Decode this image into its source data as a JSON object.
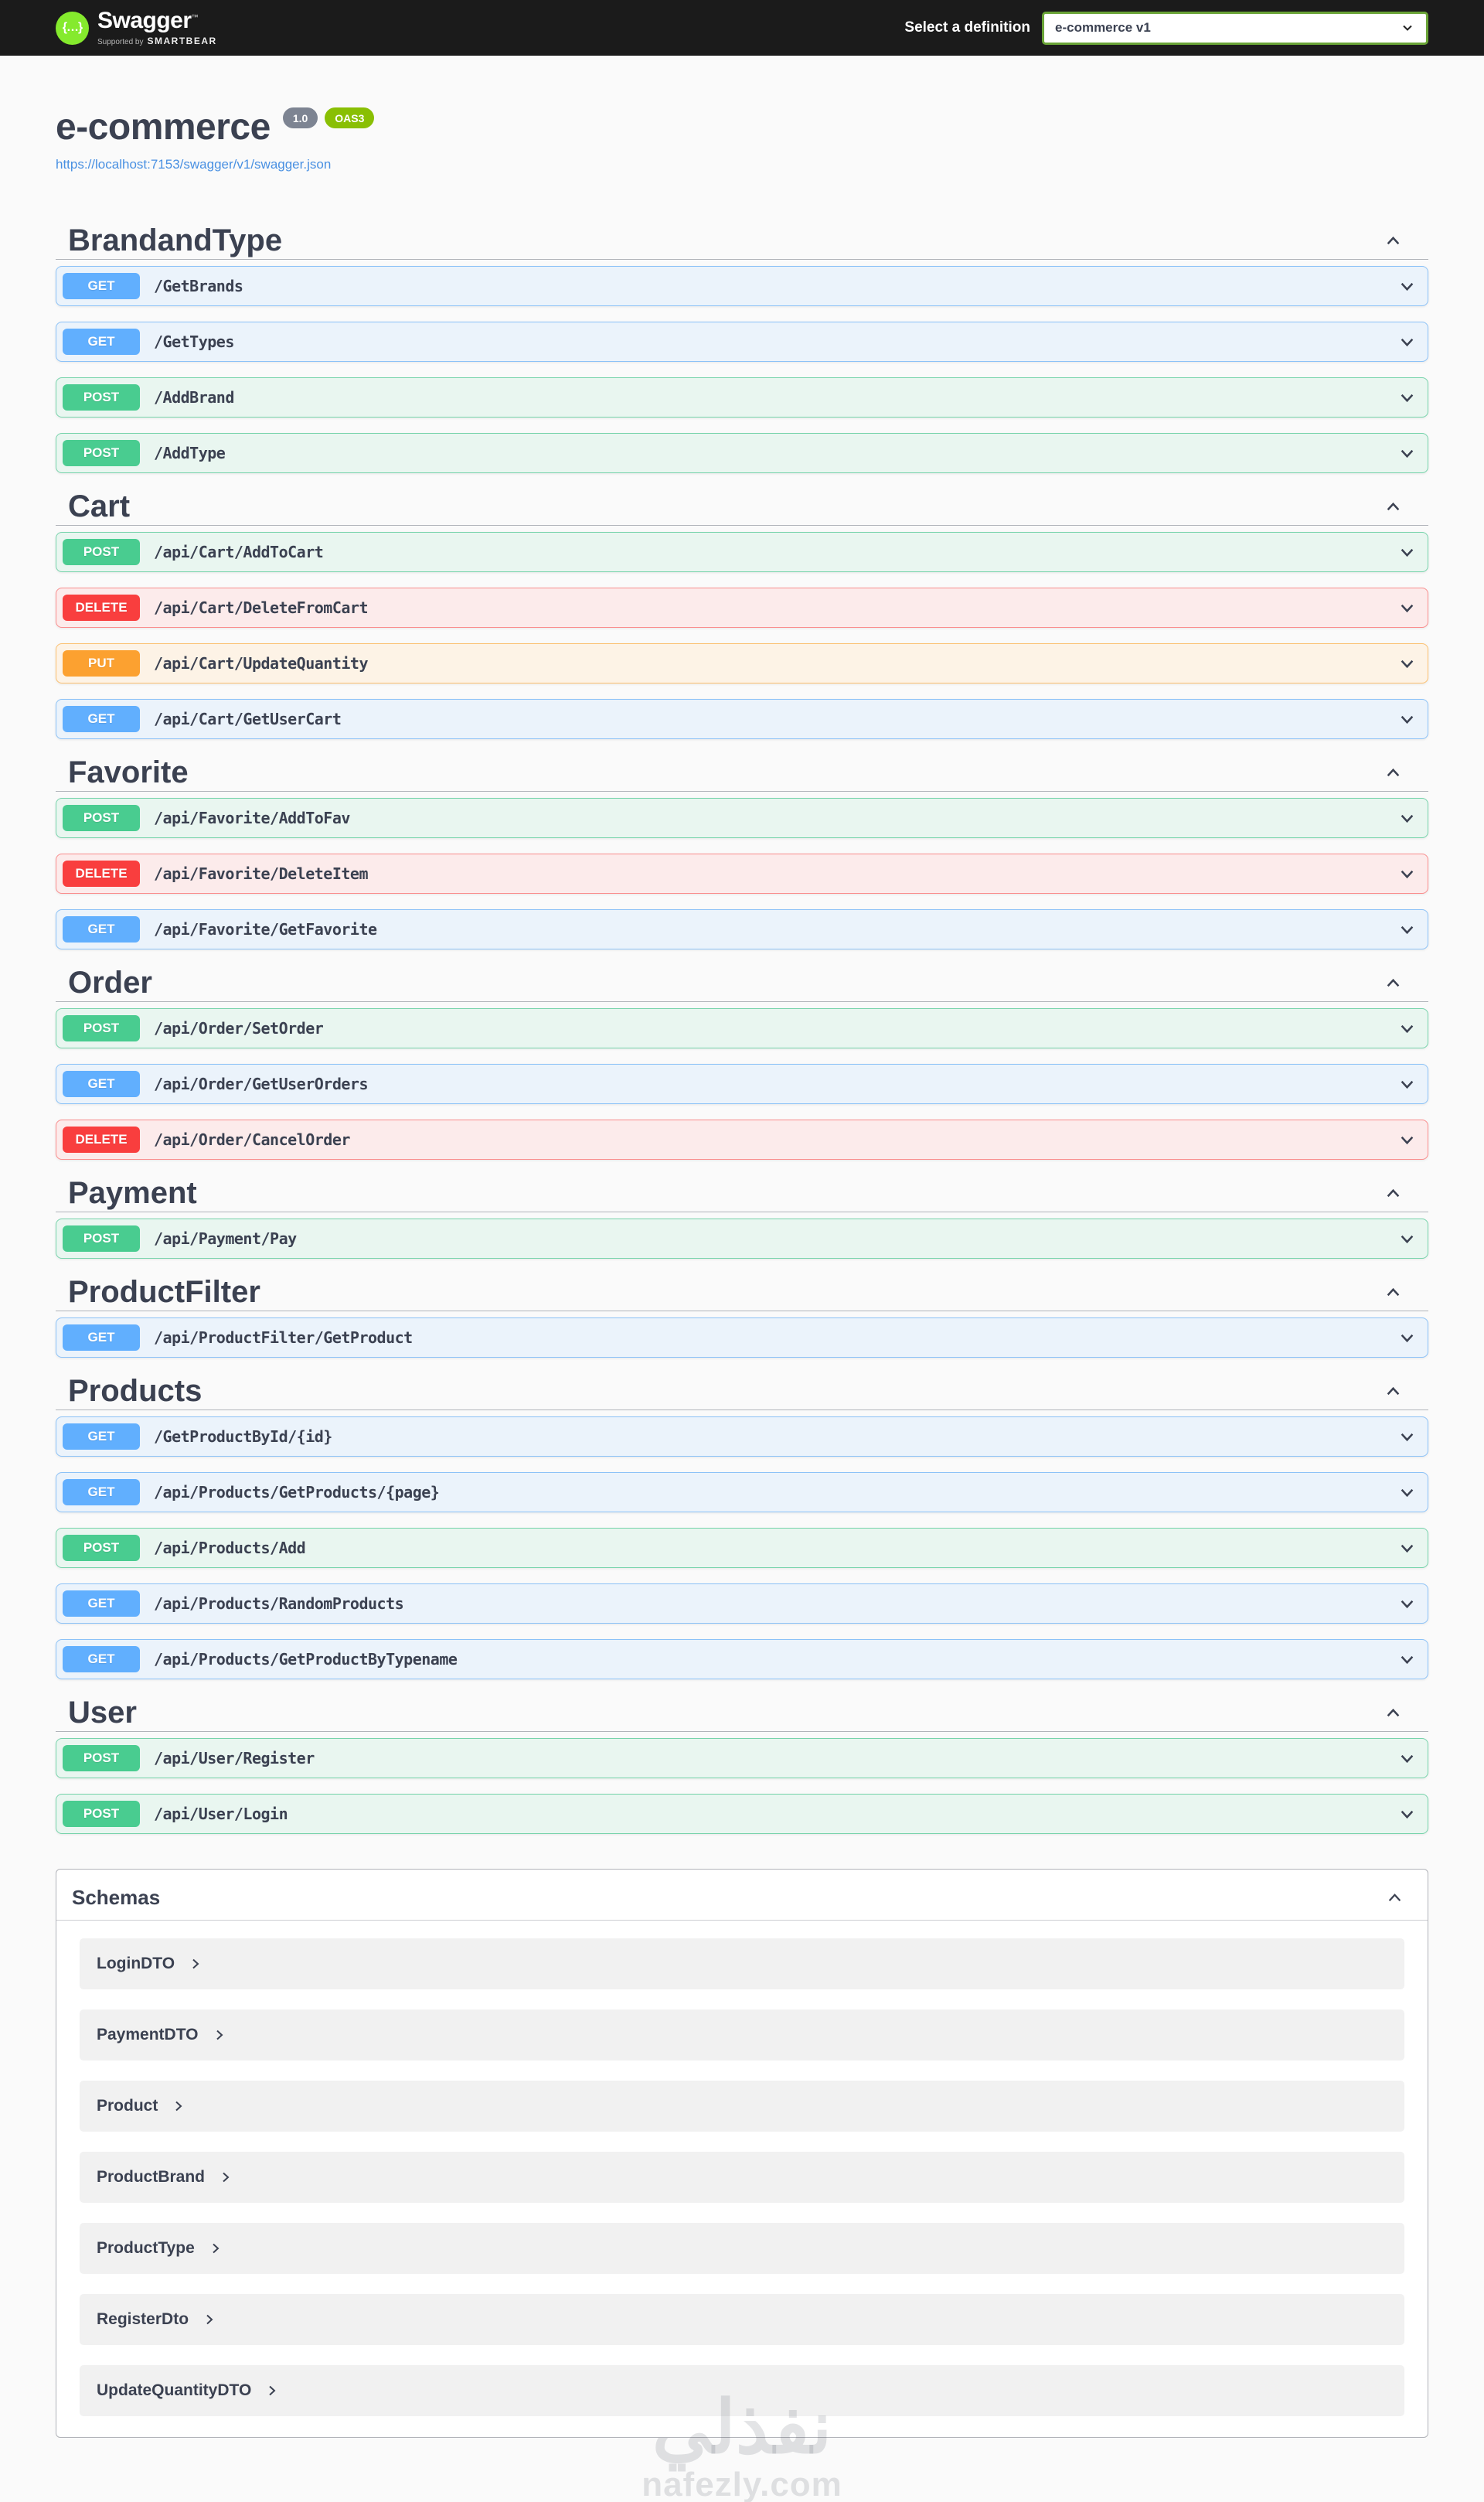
{
  "topbar": {
    "logo_text": "Swagger",
    "logo_tm": "™",
    "tagline_prefix": "Supported by",
    "tagline_brand": "SMARTBEAR",
    "definition_label": "Select a definition",
    "definition_value": "e-commerce v1"
  },
  "info": {
    "title": "e-commerce",
    "version_badge": "1.0",
    "oas_badge": "OAS3",
    "spec_url": "https://localhost:7153/swagger/v1/swagger.json"
  },
  "colors": {
    "get": "#61affe",
    "post": "#49cc90",
    "delete": "#f93e3e",
    "put": "#fca130",
    "topbar_bg": "#1b1b1b",
    "logo_green": "#85ea2d",
    "oas_badge_green": "#89bf04",
    "version_badge_gray": "#7d8492",
    "select_border_green": "#6aa437",
    "heading_text": "#3b4151",
    "link_blue": "#4990e2"
  },
  "sections": [
    {
      "name": "BrandandType",
      "endpoints": [
        {
          "method": "GET",
          "path": "/GetBrands"
        },
        {
          "method": "GET",
          "path": "/GetTypes"
        },
        {
          "method": "POST",
          "path": "/AddBrand"
        },
        {
          "method": "POST",
          "path": "/AddType"
        }
      ]
    },
    {
      "name": "Cart",
      "endpoints": [
        {
          "method": "POST",
          "path": "/api/Cart/AddToCart"
        },
        {
          "method": "DELETE",
          "path": "/api/Cart/DeleteFromCart"
        },
        {
          "method": "PUT",
          "path": "/api/Cart/UpdateQuantity"
        },
        {
          "method": "GET",
          "path": "/api/Cart/GetUserCart"
        }
      ]
    },
    {
      "name": "Favorite",
      "endpoints": [
        {
          "method": "POST",
          "path": "/api/Favorite/AddToFav"
        },
        {
          "method": "DELETE",
          "path": "/api/Favorite/DeleteItem"
        },
        {
          "method": "GET",
          "path": "/api/Favorite/GetFavorite"
        }
      ]
    },
    {
      "name": "Order",
      "endpoints": [
        {
          "method": "POST",
          "path": "/api/Order/SetOrder"
        },
        {
          "method": "GET",
          "path": "/api/Order/GetUserOrders"
        },
        {
          "method": "DELETE",
          "path": "/api/Order/CancelOrder"
        }
      ]
    },
    {
      "name": "Payment",
      "endpoints": [
        {
          "method": "POST",
          "path": "/api/Payment/Pay"
        }
      ]
    },
    {
      "name": "ProductFilter",
      "endpoints": [
        {
          "method": "GET",
          "path": "/api/ProductFilter/GetProduct"
        }
      ]
    },
    {
      "name": "Products",
      "endpoints": [
        {
          "method": "GET",
          "path": "/GetProductById/{id}"
        },
        {
          "method": "GET",
          "path": "/api/Products/GetProducts/{page}"
        },
        {
          "method": "POST",
          "path": "/api/Products/Add"
        },
        {
          "method": "GET",
          "path": "/api/Products/RandomProducts"
        },
        {
          "method": "GET",
          "path": "/api/Products/GetProductByTypename"
        }
      ]
    },
    {
      "name": "User",
      "endpoints": [
        {
          "method": "POST",
          "path": "/api/User/Register"
        },
        {
          "method": "POST",
          "path": "/api/User/Login"
        }
      ]
    }
  ],
  "schemas": {
    "title": "Schemas",
    "models": [
      "LoginDTO",
      "PaymentDTO",
      "Product",
      "ProductBrand",
      "ProductType",
      "RegisterDto",
      "UpdateQuantityDTO"
    ]
  },
  "watermark": {
    "arabic": "نفذلي",
    "domain": "nafezly.com"
  }
}
